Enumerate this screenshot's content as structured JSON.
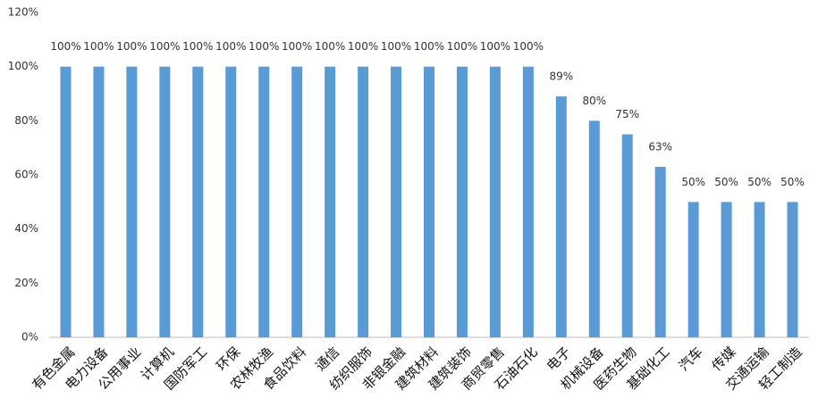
{
  "chart_data": {
    "type": "bar",
    "categories": [
      "有色金属",
      "电力设备",
      "公用事业",
      "计算机",
      "国防军工",
      "环保",
      "农林牧渔",
      "食品饮料",
      "通信",
      "纺织服饰",
      "非银金融",
      "建筑材料",
      "建筑装饰",
      "商贸零售",
      "石油石化",
      "电子",
      "机械设备",
      "医药生物",
      "基础化工",
      "汽车",
      "传媒",
      "交通运输",
      "轻工制造"
    ],
    "values": [
      100,
      100,
      100,
      100,
      100,
      100,
      100,
      100,
      100,
      100,
      100,
      100,
      100,
      100,
      100,
      89,
      80,
      75,
      63,
      50,
      50,
      50,
      50
    ],
    "value_labels": [
      "100%",
      "100%",
      "100%",
      "100%",
      "100%",
      "100%",
      "100%",
      "100%",
      "100%",
      "100%",
      "100%",
      "100%",
      "100%",
      "100%",
      "100%",
      "89%",
      "80%",
      "75%",
      "63%",
      "50%",
      "50%",
      "50%",
      "50%"
    ],
    "color": "#5b9bd5",
    "ylim": [
      0,
      120
    ],
    "yticks": [
      {
        "value": 0,
        "label": "0%"
      },
      {
        "value": 20,
        "label": "20%"
      },
      {
        "value": 40,
        "label": "40%"
      },
      {
        "value": 60,
        "label": "60%"
      },
      {
        "value": 80,
        "label": "80%"
      },
      {
        "value": 100,
        "label": "100%"
      },
      {
        "value": 120,
        "label": "120%"
      }
    ],
    "grid": false
  }
}
